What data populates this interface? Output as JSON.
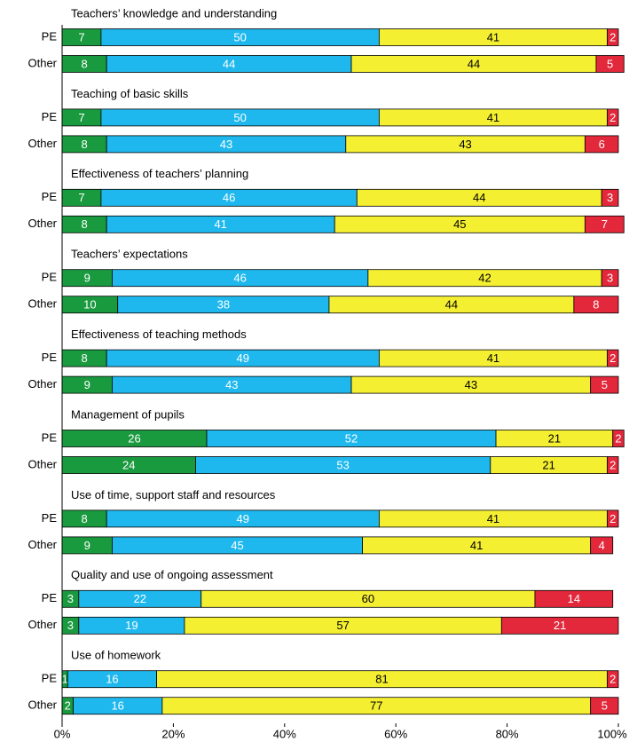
{
  "chart_data": {
    "type": "stacked_bar_h",
    "colors": [
      "#1a9a3e",
      "#1eb8ee",
      "#f5ef32",
      "#e2283a"
    ],
    "xlim": [
      0,
      100
    ],
    "xticks": [
      {
        "value": 0,
        "label": "0%"
      },
      {
        "value": 20,
        "label": "20%"
      },
      {
        "value": 40,
        "label": "40%"
      },
      {
        "value": 60,
        "label": "60%"
      },
      {
        "value": 80,
        "label": "80%"
      },
      {
        "value": 100,
        "label": "100%"
      }
    ],
    "groups": [
      {
        "title": "Teachers’ knowledge and understanding",
        "rows": [
          {
            "label": "PE",
            "values": [
              7,
              50,
              41,
              2
            ]
          },
          {
            "label": "Other",
            "values": [
              8,
              44,
              44,
              5
            ]
          }
        ]
      },
      {
        "title": "Teaching of basic skills",
        "rows": [
          {
            "label": "PE",
            "values": [
              7,
              50,
              41,
              2
            ]
          },
          {
            "label": "Other",
            "values": [
              8,
              43,
              43,
              6
            ]
          }
        ]
      },
      {
        "title": "Effectiveness of teachers’ planning",
        "rows": [
          {
            "label": "PE",
            "values": [
              7,
              46,
              44,
              3
            ]
          },
          {
            "label": "Other",
            "values": [
              8,
              41,
              45,
              7
            ]
          }
        ]
      },
      {
        "title": "Teachers’ expectations",
        "rows": [
          {
            "label": "PE",
            "values": [
              9,
              46,
              42,
              3
            ]
          },
          {
            "label": "Other",
            "values": [
              10,
              38,
              44,
              8
            ]
          }
        ]
      },
      {
        "title": "Effectiveness of teaching methods",
        "rows": [
          {
            "label": "PE",
            "values": [
              8,
              49,
              41,
              2
            ]
          },
          {
            "label": "Other",
            "values": [
              9,
              43,
              43,
              5
            ]
          }
        ]
      },
      {
        "title": "Management of pupils",
        "rows": [
          {
            "label": "PE",
            "values": [
              26,
              52,
              21,
              2
            ]
          },
          {
            "label": "Other",
            "values": [
              24,
              53,
              21,
              2
            ]
          }
        ]
      },
      {
        "title": "Use of time, support staff and resources",
        "rows": [
          {
            "label": "PE",
            "values": [
              8,
              49,
              41,
              2
            ]
          },
          {
            "label": "Other",
            "values": [
              9,
              45,
              41,
              4
            ]
          }
        ]
      },
      {
        "title": "Quality and use of ongoing assessment",
        "rows": [
          {
            "label": "PE",
            "values": [
              3,
              22,
              60,
              14
            ]
          },
          {
            "label": "Other",
            "values": [
              3,
              19,
              57,
              21
            ]
          }
        ]
      },
      {
        "title": "Use of homework",
        "rows": [
          {
            "label": "PE",
            "values": [
              1,
              16,
              81,
              2
            ]
          },
          {
            "label": "Other",
            "values": [
              2,
              16,
              77,
              5
            ]
          }
        ]
      }
    ]
  }
}
